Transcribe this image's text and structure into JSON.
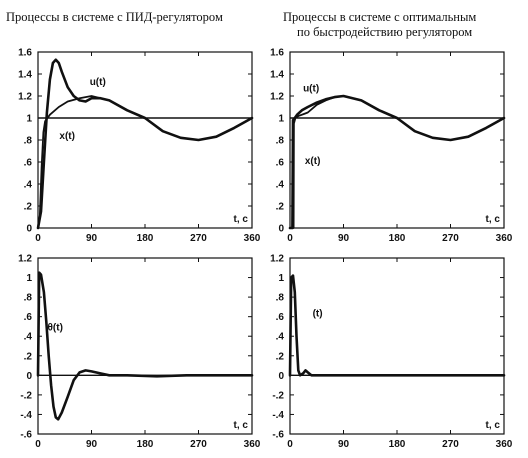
{
  "titles": {
    "left": "Процессы в системе с ПИД-регулятором",
    "right_line1": "Процессы в системе с оптимальным",
    "right_line2": "по быстродействию регулятором"
  },
  "chart_data": [
    {
      "id": "tl",
      "type": "line",
      "xlabel": "t, c",
      "xlim": [
        0,
        360
      ],
      "ylim": [
        0,
        1.6
      ],
      "xticks": [
        0,
        90,
        180,
        270,
        360
      ],
      "yticks": [
        0,
        0.2,
        0.4,
        0.6,
        0.8,
        1,
        1.2,
        1.4,
        1.6
      ],
      "hline": 1,
      "annotations": [
        {
          "text": "u(t)",
          "at": [
            87,
            1.3
          ]
        },
        {
          "text": "x(t)",
          "at": [
            36,
            0.81
          ]
        }
      ],
      "series": [
        {
          "name": "u(t)",
          "width": 2.6,
          "points": [
            [
              0,
              0
            ],
            [
              5,
              0.15
            ],
            [
              10,
              0.6
            ],
            [
              15,
              1.05
            ],
            [
              20,
              1.35
            ],
            [
              25,
              1.5
            ],
            [
              30,
              1.53
            ],
            [
              35,
              1.5
            ],
            [
              40,
              1.42
            ],
            [
              50,
              1.28
            ],
            [
              60,
              1.2
            ],
            [
              70,
              1.16
            ],
            [
              80,
              1.15
            ],
            [
              90,
              1.18
            ],
            [
              105,
              1.18
            ],
            [
              120,
              1.16
            ],
            [
              150,
              1.07
            ],
            [
              180,
              1.0
            ],
            [
              210,
              0.88
            ],
            [
              240,
              0.82
            ],
            [
              270,
              0.8
            ],
            [
              300,
              0.83
            ],
            [
              330,
              0.91
            ],
            [
              360,
              1.0
            ]
          ]
        },
        {
          "name": "x(t)",
          "width": 1.8,
          "points": [
            [
              0,
              0
            ],
            [
              3,
              0.1
            ],
            [
              6,
              0.55
            ],
            [
              9,
              0.87
            ],
            [
              12,
              0.97
            ],
            [
              20,
              1.03
            ],
            [
              35,
              1.1
            ],
            [
              50,
              1.15
            ],
            [
              70,
              1.18
            ],
            [
              90,
              1.2
            ],
            [
              120,
              1.16
            ],
            [
              150,
              1.07
            ],
            [
              180,
              1.0
            ],
            [
              210,
              0.88
            ],
            [
              240,
              0.82
            ],
            [
              270,
              0.8
            ],
            [
              300,
              0.83
            ],
            [
              330,
              0.91
            ],
            [
              360,
              1.0
            ]
          ]
        }
      ]
    },
    {
      "id": "tr",
      "type": "line",
      "xlabel": "t, c",
      "xlim": [
        0,
        360
      ],
      "ylim": [
        0,
        1.6
      ],
      "xticks": [
        0,
        90,
        180,
        270,
        360
      ],
      "yticks": [
        0,
        0.2,
        0.4,
        0.6,
        0.8,
        1,
        1.2,
        1.4,
        1.6
      ],
      "hline": 1,
      "annotations": [
        {
          "text": "u(t)",
          "at": [
            22,
            1.24
          ]
        },
        {
          "text": "x(t)",
          "at": [
            25,
            0.58
          ]
        }
      ],
      "series": [
        {
          "name": "u(t)",
          "width": 2.6,
          "points": [
            [
              0,
              0
            ],
            [
              4,
              0
            ],
            [
              5,
              0.98
            ],
            [
              8,
              1.0
            ],
            [
              12,
              1.03
            ],
            [
              20,
              1.07
            ],
            [
              30,
              1.1
            ],
            [
              45,
              1.14
            ],
            [
              60,
              1.17
            ],
            [
              75,
              1.19
            ],
            [
              90,
              1.2
            ],
            [
              120,
              1.16
            ],
            [
              150,
              1.07
            ],
            [
              180,
              1.0
            ],
            [
              210,
              0.88
            ],
            [
              240,
              0.82
            ],
            [
              270,
              0.8
            ],
            [
              300,
              0.83
            ],
            [
              330,
              0.91
            ],
            [
              360,
              1.0
            ]
          ]
        },
        {
          "name": "x(t)",
          "width": 1.8,
          "points": [
            [
              0,
              0
            ],
            [
              6,
              0
            ],
            [
              6.5,
              0.95
            ],
            [
              9,
              1.0
            ],
            [
              15,
              1.02
            ],
            [
              25,
              1.04
            ],
            [
              30,
              1.05
            ],
            [
              45,
              1.12
            ],
            [
              60,
              1.16
            ],
            [
              75,
              1.19
            ],
            [
              90,
              1.2
            ],
            [
              120,
              1.16
            ],
            [
              150,
              1.07
            ],
            [
              180,
              1.0
            ],
            [
              210,
              0.88
            ],
            [
              240,
              0.82
            ],
            [
              270,
              0.8
            ],
            [
              300,
              0.83
            ],
            [
              330,
              0.91
            ],
            [
              360,
              1.0
            ]
          ]
        }
      ]
    },
    {
      "id": "bl",
      "type": "line",
      "xlabel": "t, c",
      "xlim": [
        0,
        360
      ],
      "ylim": [
        -0.6,
        1.2
      ],
      "xticks": [
        0,
        90,
        180,
        270,
        360
      ],
      "yticks": [
        -0.6,
        -0.4,
        -0.2,
        0,
        0.2,
        0.4,
        0.6,
        0.8,
        1,
        1.2
      ],
      "hline": 0,
      "annotations": [
        {
          "text": "θ(t)",
          "at": [
            16,
            0.46
          ]
        }
      ],
      "series": [
        {
          "name": "θ(t)",
          "width": 2.6,
          "points": [
            [
              0,
              0
            ],
            [
              2,
              1.05
            ],
            [
              5,
              1.03
            ],
            [
              10,
              0.85
            ],
            [
              14,
              0.55
            ],
            [
              18,
              0.2
            ],
            [
              22,
              -0.1
            ],
            [
              26,
              -0.32
            ],
            [
              30,
              -0.43
            ],
            [
              34,
              -0.45
            ],
            [
              40,
              -0.38
            ],
            [
              50,
              -0.22
            ],
            [
              60,
              -0.05
            ],
            [
              70,
              0.03
            ],
            [
              80,
              0.05
            ],
            [
              90,
              0.04
            ],
            [
              105,
              0.02
            ],
            [
              120,
              0.0
            ],
            [
              150,
              0.0
            ],
            [
              200,
              -0.01
            ],
            [
              250,
              0.0
            ],
            [
              360,
              0.0
            ]
          ]
        }
      ]
    },
    {
      "id": "br",
      "type": "line",
      "xlabel": "t, c",
      "xlim": [
        0,
        360
      ],
      "ylim": [
        -0.6,
        1.2
      ],
      "xticks": [
        0,
        90,
        180,
        270,
        360
      ],
      "yticks": [
        -0.6,
        -0.4,
        -0.2,
        0,
        0.2,
        0.4,
        0.6,
        0.8,
        1,
        1.2
      ],
      "hline": 0,
      "annotations": [
        {
          "text": "(t)",
          "at": [
            38,
            0.6
          ]
        }
      ],
      "series": [
        {
          "name": "(t)",
          "width": 2.6,
          "points": [
            [
              0,
              0
            ],
            [
              2,
              1.0
            ],
            [
              5,
              1.02
            ],
            [
              8,
              0.85
            ],
            [
              11,
              0.4
            ],
            [
              14,
              0.05
            ],
            [
              17,
              0.0
            ],
            [
              22,
              0.02
            ],
            [
              26,
              0.05
            ],
            [
              30,
              0.03
            ],
            [
              36,
              0.0
            ],
            [
              360,
              0.0
            ]
          ]
        }
      ]
    }
  ]
}
